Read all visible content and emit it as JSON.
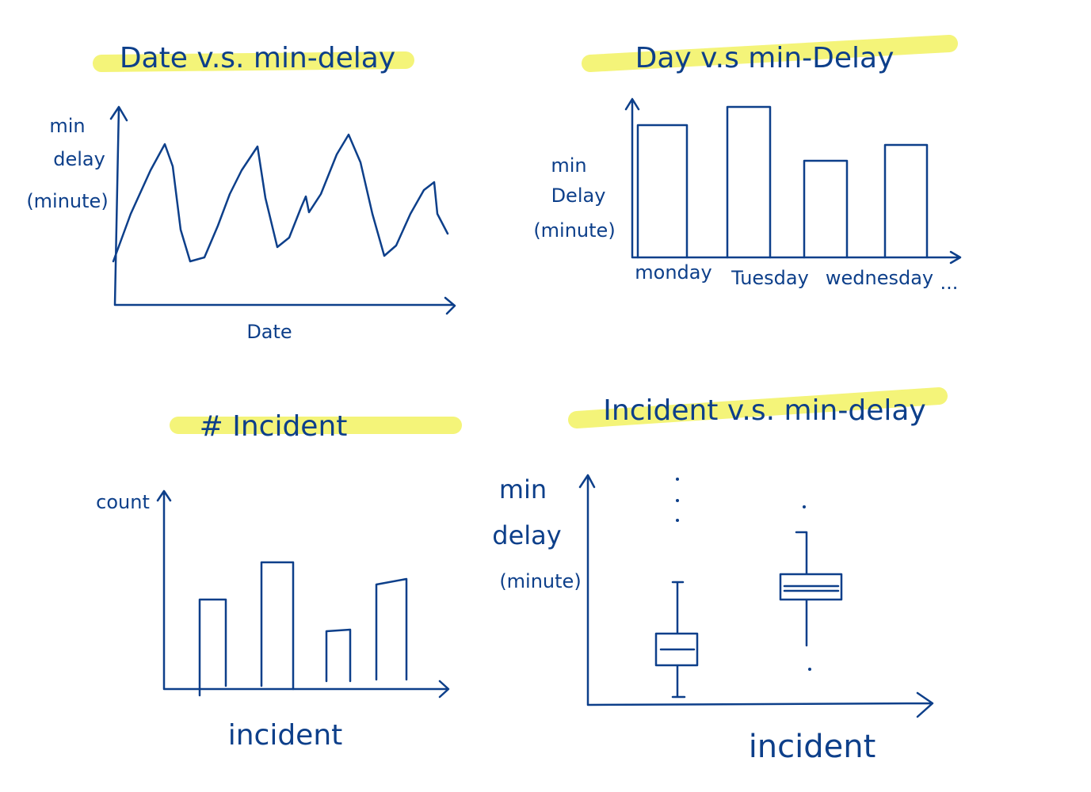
{
  "panels": [
    {
      "title": "Date v.s. min-delay",
      "y_label": [
        "min",
        "delay",
        "(minute)"
      ],
      "x_label": "Date"
    },
    {
      "title": "Day v.s min-Delay",
      "y_label": [
        "min",
        "Delay",
        "(minute)"
      ],
      "categories": [
        "monday",
        "Tuesday",
        "wednesday",
        "..."
      ]
    },
    {
      "title": "# Incident",
      "y_label": [
        "count"
      ],
      "x_label": "incident"
    },
    {
      "title": "Incident v.s. min-delay",
      "y_label": [
        "min",
        "delay",
        "(minute)"
      ],
      "x_label": "incident"
    }
  ]
}
